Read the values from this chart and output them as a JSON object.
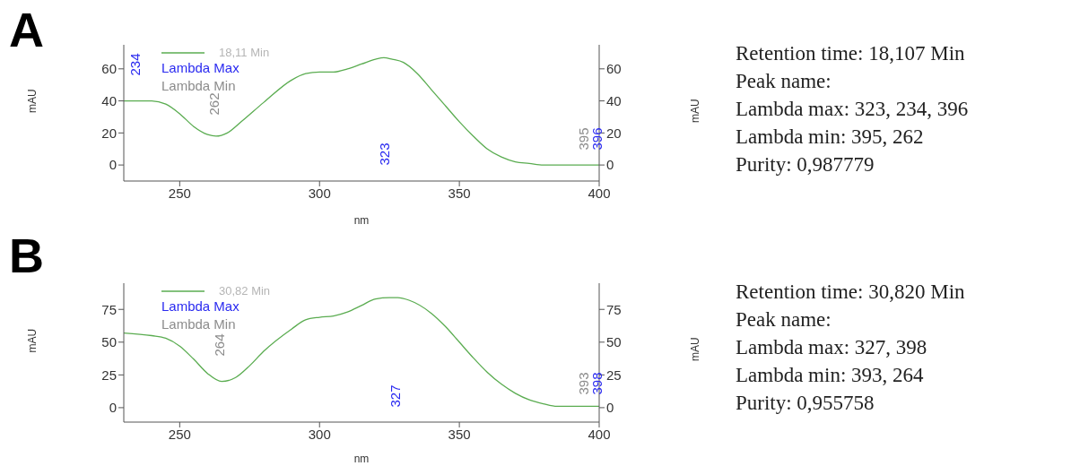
{
  "chart_data": [
    {
      "type": "line",
      "title": "A",
      "xlabel": "nm",
      "ylabel": "mAU",
      "y2label": "mAU",
      "legend": "top left",
      "x": [
        230,
        240,
        245,
        250,
        255,
        260,
        263,
        267,
        272,
        280,
        290,
        295,
        300,
        305,
        310,
        315,
        320,
        323,
        326,
        330,
        335,
        340,
        345,
        350,
        355,
        360,
        365,
        370,
        375,
        380,
        390,
        400
      ],
      "series": [
        {
          "name": "18,11 Min",
          "color": "#5aac50",
          "values": [
            40,
            40,
            38,
            32,
            24,
            19,
            18,
            20,
            27,
            39,
            53,
            57,
            58,
            58,
            60,
            63,
            66,
            67,
            66,
            64,
            57,
            47,
            37,
            27,
            18,
            10,
            5,
            2,
            1,
            0,
            0,
            0
          ]
        }
      ],
      "xlim": [
        230,
        400
      ],
      "xticks": [
        250,
        300,
        350,
        400
      ],
      "ylim": [
        -10,
        75
      ],
      "yticks": [
        0,
        20,
        40,
        60
      ],
      "y2lim": [
        -10,
        75
      ],
      "y2ticks": [
        0,
        20,
        40,
        60
      ],
      "annotations": [
        "Lambda Max",
        "Lambda Min",
        "234",
        "262",
        "323",
        "395",
        "396",
        "Retention time: 18,107 Min",
        "Peak name:",
        "Lambda max: 323, 234, 396",
        "Lambda min: 395, 262",
        "Purity: 0,987779"
      ]
    },
    {
      "type": "line",
      "title": "B",
      "xlabel": "nm",
      "ylabel": "mAU",
      "y2label": "mAU",
      "legend": "top left",
      "x": [
        230,
        240,
        245,
        250,
        255,
        260,
        265,
        270,
        275,
        280,
        290,
        295,
        300,
        305,
        310,
        315,
        320,
        325,
        328,
        332,
        340,
        345,
        350,
        355,
        360,
        365,
        370,
        375,
        380,
        385,
        390,
        400
      ],
      "series": [
        {
          "name": "30,82 Min",
          "color": "#5aac50",
          "values": [
            57,
            55,
            53,
            47,
            37,
            26,
            20,
            23,
            32,
            43,
            60,
            67,
            69,
            70,
            73,
            78,
            83,
            84,
            84,
            82,
            72,
            62,
            50,
            38,
            27,
            18,
            11,
            6,
            3,
            1,
            1,
            1
          ]
        }
      ],
      "xlim": [
        230,
        400
      ],
      "xticks": [
        250,
        300,
        350,
        400
      ],
      "ylim": [
        -11,
        95
      ],
      "yticks": [
        0,
        25,
        50,
        75
      ],
      "y2lim": [
        -11,
        95
      ],
      "y2ticks": [
        0,
        25,
        50,
        75
      ],
      "annotations": [
        "Lambda Max",
        "Lambda Min",
        "264",
        "327",
        "393",
        "398",
        "Retention time: 30,820 Min",
        "Peak name:",
        "Lambda max: 327, 398",
        "Lambda min: 393, 264",
        "Purity: 0,955758"
      ]
    }
  ]
}
